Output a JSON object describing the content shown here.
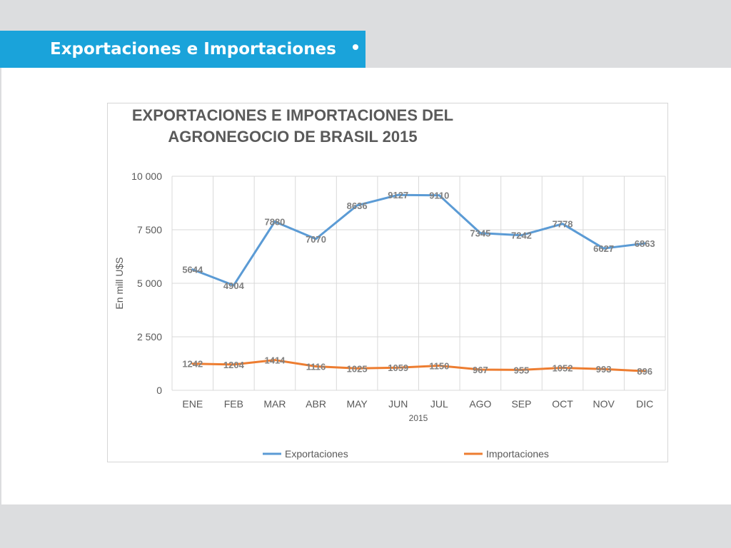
{
  "header": {
    "title": "Exportaciones e Importaciones"
  },
  "colors": {
    "banner": "#1aa3da",
    "exportaciones": "#5b9bd5",
    "importaciones": "#ed7d31"
  },
  "chart_data": {
    "type": "line",
    "title": "EXPORTACIONES E IMPORTACIONES DEL AGRONEGOCIO DE BRASIL 2015",
    "xlabel": "2015",
    "ylabel": "En mill U$S",
    "categories": [
      "ENE",
      "FEB",
      "MAR",
      "ABR",
      "MAY",
      "JUN",
      "JUL",
      "AGO",
      "SEP",
      "OCT",
      "NOV",
      "DIC"
    ],
    "ylim": [
      0,
      10000
    ],
    "yticks": [
      0,
      2500,
      5000,
      7500,
      10000
    ],
    "ytick_labels": [
      "0",
      "2 500",
      "5 000",
      "7 500",
      "10 000"
    ],
    "grid": true,
    "legend_position": "bottom",
    "series": [
      {
        "name": "Exportaciones",
        "values": [
          5644,
          4904,
          7880,
          7070,
          8636,
          9127,
          9110,
          7345,
          7242,
          7778,
          6627,
          6863
        ]
      },
      {
        "name": "Importaciones",
        "values": [
          1242,
          1204,
          1414,
          1116,
          1025,
          1059,
          1150,
          967,
          955,
          1052,
          993,
          896
        ]
      }
    ]
  }
}
